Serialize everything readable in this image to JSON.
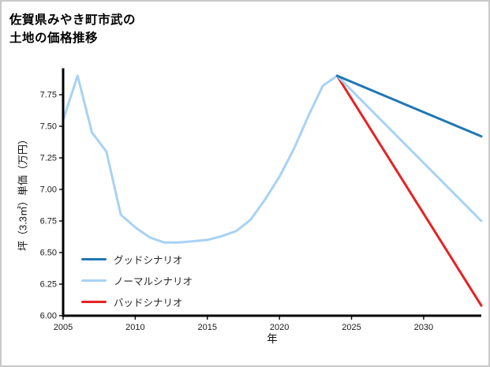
{
  "title": {
    "line1": "佐賀県みやき町市武の",
    "line2": "土地の価格推移"
  },
  "chart_data": {
    "type": "line",
    "title": "佐賀県みやき町市武の土地の価格推移",
    "xlabel": "年",
    "ylabel": "坪（3.3㎡）単価（万円）",
    "xlim": [
      2005,
      2034
    ],
    "ylim": [
      6.0,
      7.95
    ],
    "xticks": [
      2005,
      2010,
      2015,
      2020,
      2025,
      2030
    ],
    "yticks": [
      6.0,
      6.25,
      6.5,
      6.75,
      7.0,
      7.25,
      7.5,
      7.75
    ],
    "grid": false,
    "legend_position": "lower-left",
    "series": [
      {
        "id": "good-scenario",
        "name": "グッドシナリオ",
        "color": "#1f77b4",
        "x": [
          2024,
          2034
        ],
        "y": [
          7.9,
          7.42
        ]
      },
      {
        "id": "normal-scenario",
        "name": "ノーマルシナリオ",
        "color": "#a8d2f5",
        "x": [
          2005,
          2006,
          2007,
          2008,
          2009,
          2010,
          2011,
          2012,
          2013,
          2014,
          2015,
          2016,
          2017,
          2018,
          2019,
          2020,
          2021,
          2022,
          2023,
          2024,
          2034
        ],
        "y": [
          7.55,
          7.9,
          7.45,
          7.3,
          6.8,
          6.7,
          6.62,
          6.58,
          6.58,
          6.59,
          6.6,
          6.63,
          6.67,
          6.76,
          6.92,
          7.1,
          7.32,
          7.58,
          7.82,
          7.9,
          6.75
        ]
      },
      {
        "id": "bad-scenario",
        "name": "バッドシナリオ",
        "color": "#e62222",
        "x": [
          2024,
          2034
        ],
        "y": [
          7.9,
          6.08
        ]
      }
    ]
  }
}
